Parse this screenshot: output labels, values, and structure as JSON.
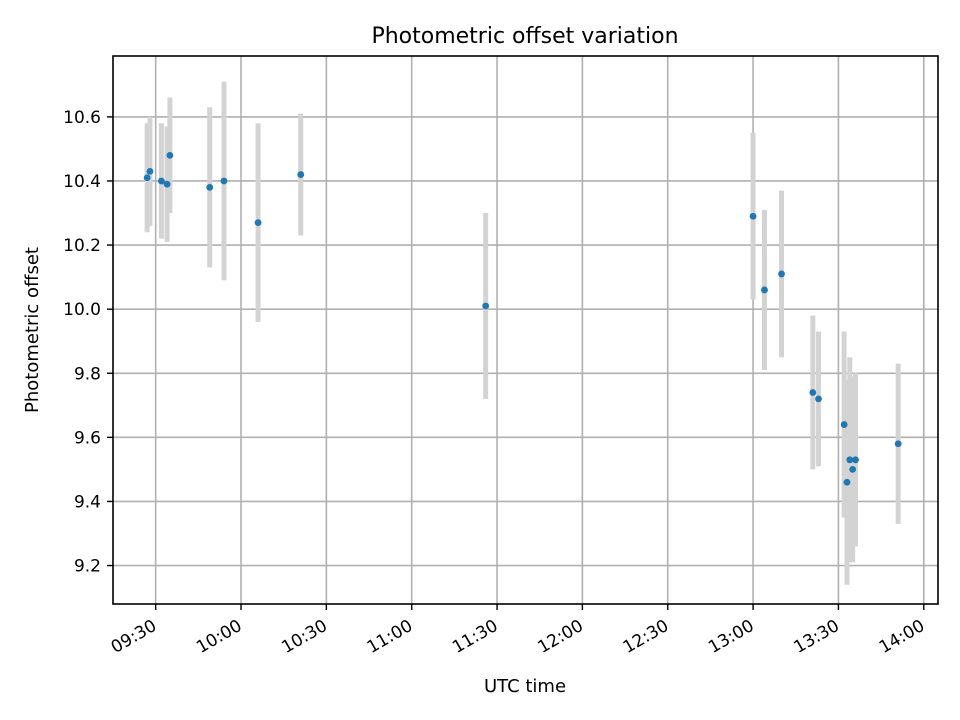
{
  "chart_data": {
    "type": "scatter",
    "title": "Photometric offset variation",
    "xlabel": "UTC time",
    "ylabel": "Photometric offset",
    "grid": true,
    "x_tick_labels": [
      "09:30",
      "10:00",
      "10:30",
      "11:00",
      "11:30",
      "12:00",
      "12:30",
      "13:00",
      "13:30",
      "14:00"
    ],
    "y_tick_labels": [
      "9.2",
      "9.4",
      "9.6",
      "9.8",
      "10.0",
      "10.2",
      "10.4",
      "10.6"
    ],
    "y_ticks": [
      9.2,
      9.4,
      9.6,
      9.8,
      10.0,
      10.2,
      10.4,
      10.6
    ],
    "xlim": [
      "09:15",
      "14:05"
    ],
    "ylim": [
      9.08,
      10.79
    ],
    "colors": {
      "marker": "#1f77b4",
      "errorbar": "#d3d3d3"
    },
    "series": [
      {
        "points": [
          {
            "x": "09:27",
            "y": 10.41,
            "err": 0.17
          },
          {
            "x": "09:28",
            "y": 10.43,
            "err": 0.17
          },
          {
            "x": "09:32",
            "y": 10.4,
            "err": 0.18
          },
          {
            "x": "09:34",
            "y": 10.39,
            "err": 0.18
          },
          {
            "x": "09:35",
            "y": 10.48,
            "err": 0.18
          },
          {
            "x": "09:49",
            "y": 10.38,
            "err": 0.25
          },
          {
            "x": "09:54",
            "y": 10.4,
            "err": 0.31
          },
          {
            "x": "10:06",
            "y": 10.27,
            "err": 0.31
          },
          {
            "x": "10:21",
            "y": 10.42,
            "err": 0.19
          },
          {
            "x": "11:26",
            "y": 10.01,
            "err": 0.29
          },
          {
            "x": "13:00",
            "y": 10.29,
            "err": 0.26
          },
          {
            "x": "13:04",
            "y": 10.06,
            "err": 0.25
          },
          {
            "x": "13:10",
            "y": 10.11,
            "err": 0.26
          },
          {
            "x": "13:21",
            "y": 9.74,
            "err": 0.24
          },
          {
            "x": "13:23",
            "y": 9.72,
            "err": 0.21
          },
          {
            "x": "13:32",
            "y": 9.64,
            "err": 0.29
          },
          {
            "x": "13:33",
            "y": 9.46,
            "err": 0.32
          },
          {
            "x": "13:34",
            "y": 9.53,
            "err": 0.32
          },
          {
            "x": "13:35",
            "y": 9.5,
            "err": 0.29
          },
          {
            "x": "13:36",
            "y": 9.53,
            "err": 0.27
          },
          {
            "x": "13:51",
            "y": 9.58,
            "err": 0.25
          }
        ]
      }
    ]
  }
}
